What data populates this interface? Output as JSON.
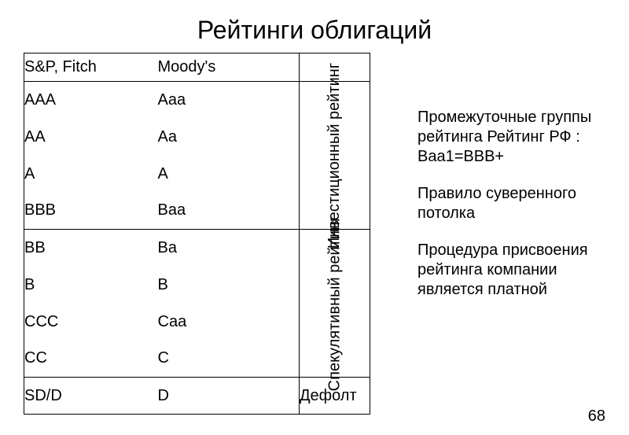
{
  "title": "Рейтинги облигаций",
  "table": {
    "headers": {
      "col1": "S&P, Fitch",
      "col2": "Moody's"
    },
    "groups": [
      {
        "label": "Инвестиционный рейтинг",
        "rows": [
          {
            "sp": "AAA",
            "moody": "Aaa"
          },
          {
            "sp": "AA",
            "moody": "Aa"
          },
          {
            "sp": "A",
            "moody": "A"
          },
          {
            "sp": "BBB",
            "moody": "Baa"
          }
        ]
      },
      {
        "label": "Спекулятивный рейтинг",
        "rows": [
          {
            "sp": "BB",
            "moody": "Ba"
          },
          {
            "sp": "B",
            "moody": "B"
          },
          {
            "sp": "CCC",
            "moody": "Caa"
          },
          {
            "sp": "CC",
            "moody": "C"
          }
        ]
      },
      {
        "label": "Дефолт",
        "rows": [
          {
            "sp": "SD/D",
            "moody": "D"
          }
        ]
      }
    ]
  },
  "side": {
    "p1": "Промежуточные группы рейтинга Рейтинг РФ : Baa1=BBB+",
    "p2": "Правило суверенного потолка",
    "p3": "Процедура присвоения рейтинга компании является платной"
  },
  "pagenum": "68",
  "style": {
    "title_fontsize": 32,
    "body_fontsize": 20,
    "col1_width": 170,
    "col2_width": 180,
    "col3_width": 90,
    "header_row_height": 36,
    "data_row_height": 47,
    "border_color": "#000000",
    "background_color": "#ffffff",
    "text_color": "#000000"
  }
}
